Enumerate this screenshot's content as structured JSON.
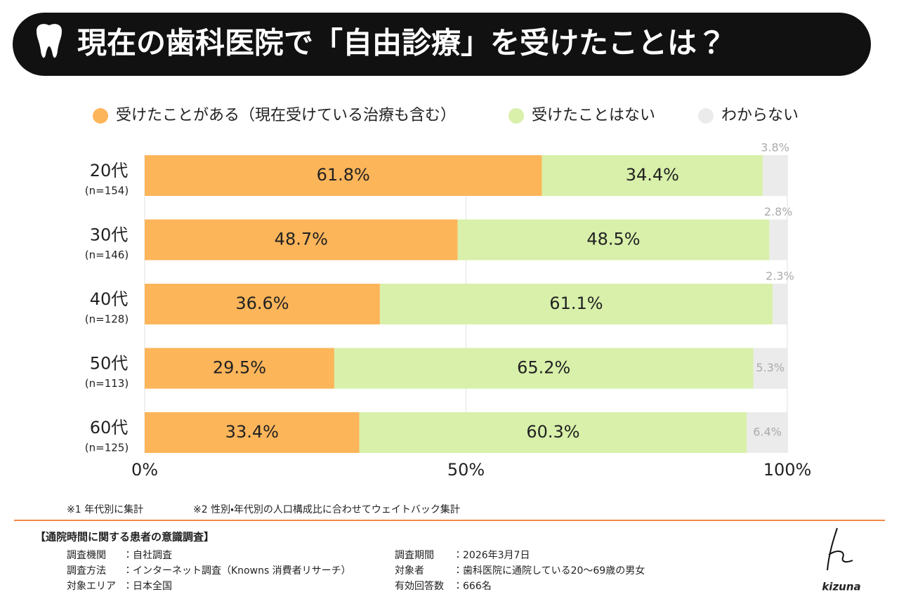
{
  "chart_data": {
    "type": "bar",
    "orientation": "horizontal",
    "stacked": true,
    "title": "現在の歯科医院で「自由診療」を受けたことは？",
    "categories": [
      "20代",
      "30代",
      "40代",
      "50代",
      "60代"
    ],
    "sample_sizes": [
      "(n=154)",
      "(n=146)",
      "(n=128)",
      "(n=113)",
      "(n=125)"
    ],
    "series": [
      {
        "name": "受けたことがある（現在受けている治療も含む）",
        "color": "#fdb55a",
        "values": [
          61.8,
          48.7,
          36.6,
          29.5,
          33.4
        ],
        "value_labels": [
          "61.8%",
          "48.7%",
          "36.6%",
          "29.5%",
          "33.4%"
        ]
      },
      {
        "name": "受けたことはない",
        "color": "#d8f0aa",
        "values": [
          34.4,
          48.5,
          61.1,
          65.2,
          60.3
        ],
        "value_labels": [
          "34.4%",
          "48.5%",
          "61.1%",
          "65.2%",
          "60.3%"
        ]
      },
      {
        "name": "わからない",
        "color": "#ebebeb",
        "values": [
          3.8,
          2.8,
          2.3,
          5.3,
          6.4
        ],
        "value_labels": [
          "3.8%",
          "2.8%",
          "2.3%",
          "5.3%",
          "6.4%"
        ]
      }
    ],
    "xlim": [
      0,
      100
    ],
    "xticks": [
      {
        "value": 0,
        "label": "0%"
      },
      {
        "value": 50,
        "label": "50%"
      },
      {
        "value": 100,
        "label": "100%"
      }
    ],
    "grid": true
  },
  "notes": [
    "※1 年代別に集計",
    "※2 性別・年代別の人口構成比に合わせてウェイトバック集計"
  ],
  "survey": {
    "heading": "【通院時間に関する患者の意識調査】",
    "columns": [
      [
        {
          "label": "調査機関",
          "value": "：自社調査"
        },
        {
          "label": "調査方法",
          "value": "：インターネット調査（Knowns 消費者リサーチ）"
        },
        {
          "label": "対象エリア",
          "value": "：日本全国"
        }
      ],
      [
        {
          "label": "調査期間",
          "value": "：2026年3月7日"
        },
        {
          "label": "対象者",
          "value": "：歯科医院に通院している20〜69歳の男女"
        },
        {
          "label": "有効回答数",
          "value": "：666名"
        }
      ]
    ]
  },
  "logo": "kizuna"
}
